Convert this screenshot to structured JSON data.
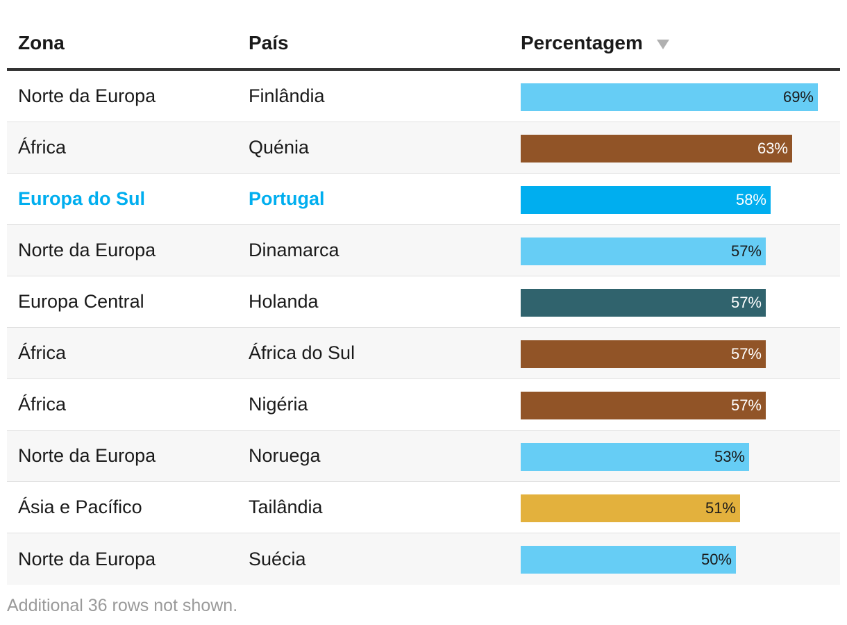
{
  "chart_data": {
    "type": "table",
    "columns": [
      "Zona",
      "País",
      "Percentagem"
    ],
    "sort_column": "Percentagem",
    "sort_direction": "descending",
    "value_max": 100,
    "rows": [
      {
        "zona": "Norte da Europa",
        "pais": "Finlândia",
        "value": 69,
        "label": "69%",
        "color": "#66cdf5",
        "text_color": "#1a1a1a",
        "highlight": false
      },
      {
        "zona": "África",
        "pais": "Quénia",
        "value": 63,
        "label": "63%",
        "color": "#915427",
        "text_color": "#ffffff",
        "highlight": false
      },
      {
        "zona": "Europa do Sul",
        "pais": "Portugal",
        "value": 58,
        "label": "58%",
        "color": "#00aeef",
        "text_color": "#ffffff",
        "highlight": true
      },
      {
        "zona": "Norte da Europa",
        "pais": "Dinamarca",
        "value": 57,
        "label": "57%",
        "color": "#66cdf5",
        "text_color": "#1a1a1a",
        "highlight": false
      },
      {
        "zona": "Europa Central",
        "pais": "Holanda",
        "value": 57,
        "label": "57%",
        "color": "#30636d",
        "text_color": "#ffffff",
        "highlight": false
      },
      {
        "zona": "África",
        "pais": "África do Sul",
        "value": 57,
        "label": "57%",
        "color": "#915427",
        "text_color": "#ffffff",
        "highlight": false
      },
      {
        "zona": "África",
        "pais": "Nigéria",
        "value": 57,
        "label": "57%",
        "color": "#915427",
        "text_color": "#ffffff",
        "highlight": false
      },
      {
        "zona": "Norte da Europa",
        "pais": "Noruega",
        "value": 53,
        "label": "53%",
        "color": "#66cdf5",
        "text_color": "#1a1a1a",
        "highlight": false
      },
      {
        "zona": "Ásia e Pacífico",
        "pais": "Tailândia",
        "value": 51,
        "label": "51%",
        "color": "#e3b13d",
        "text_color": "#1a1a1a",
        "highlight": false
      },
      {
        "zona": "Norte da Europa",
        "pais": "Suécia",
        "value": 50,
        "label": "50%",
        "color": "#66cdf5",
        "text_color": "#1a1a1a",
        "highlight": false
      }
    ]
  },
  "footnote": "Additional 36 rows not shown.",
  "icons": {
    "sort": "sort-descending-triangle-icon"
  }
}
